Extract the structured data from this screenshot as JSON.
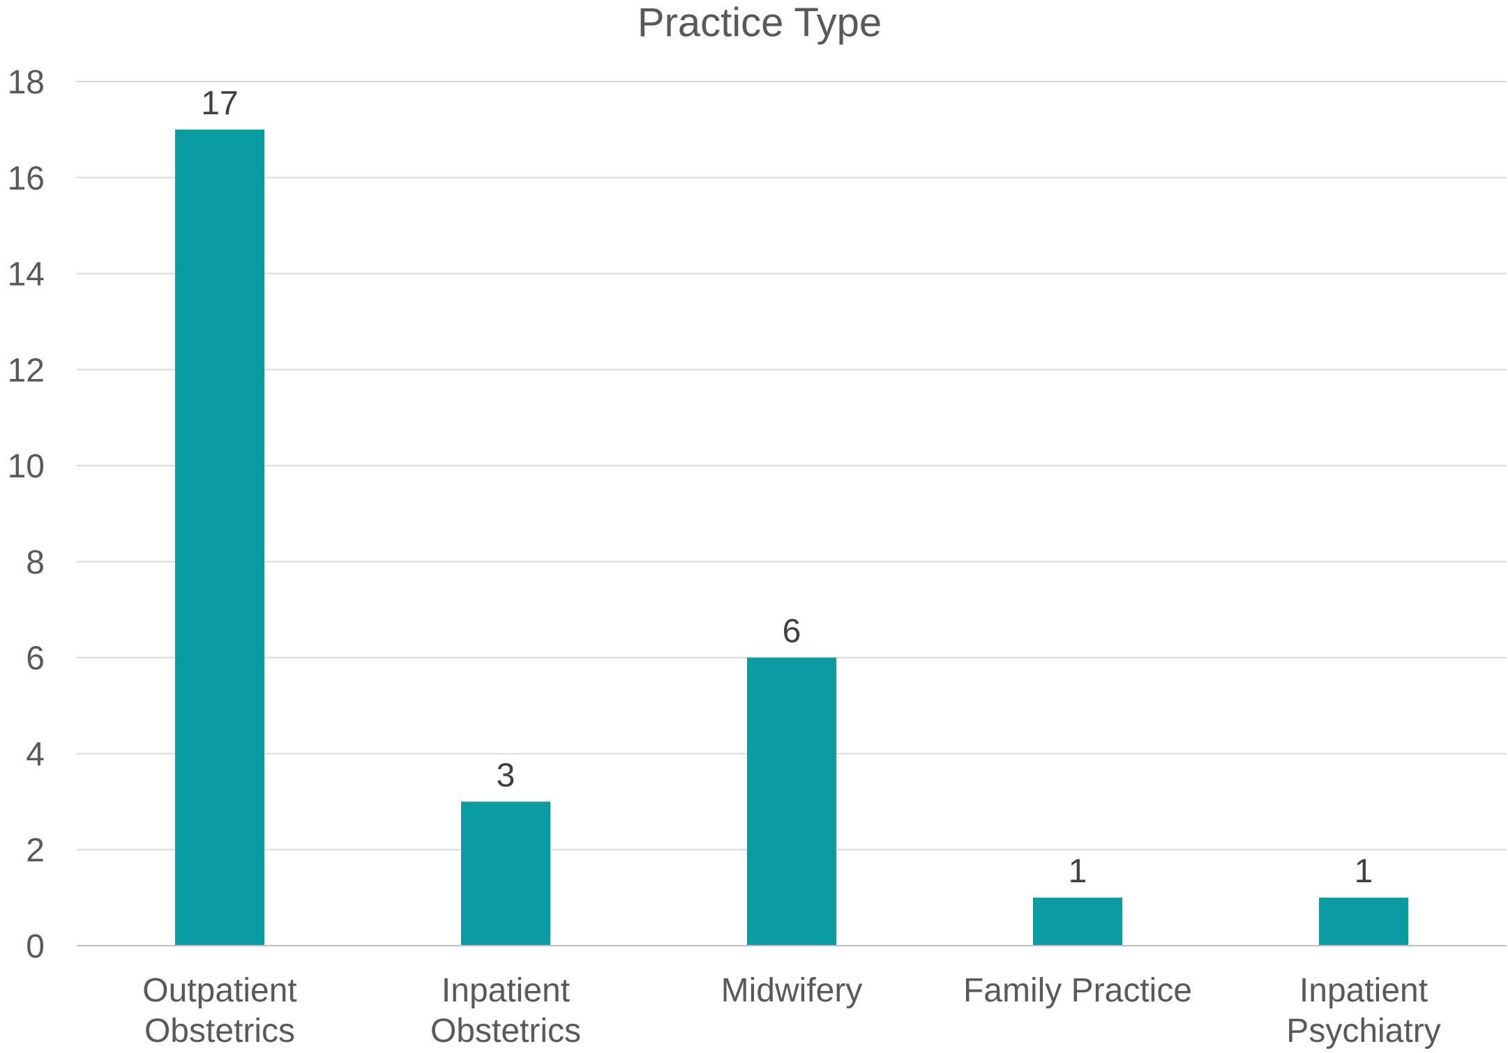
{
  "chart_data": {
    "type": "bar",
    "title": "Practice Type",
    "categories": [
      [
        "Outpatient",
        "Obstetrics"
      ],
      [
        "Inpatient",
        "Obstetrics"
      ],
      [
        "Midwifery"
      ],
      [
        "Family Practice"
      ],
      [
        "Inpatient",
        "Psychiatry"
      ]
    ],
    "values": [
      17,
      3,
      6,
      1,
      1
    ],
    "yticks": [
      "0",
      "2",
      "4",
      "6",
      "8",
      "10",
      "12",
      "14",
      "16",
      "18"
    ],
    "ylim": [
      0,
      18
    ],
    "grid": true,
    "legend": "none",
    "colors": {
      "bar": "#0a9ca2",
      "grid": "#d9d9d9",
      "axis": "#bfbfbf",
      "text": "#595959",
      "label": "#404040"
    }
  }
}
